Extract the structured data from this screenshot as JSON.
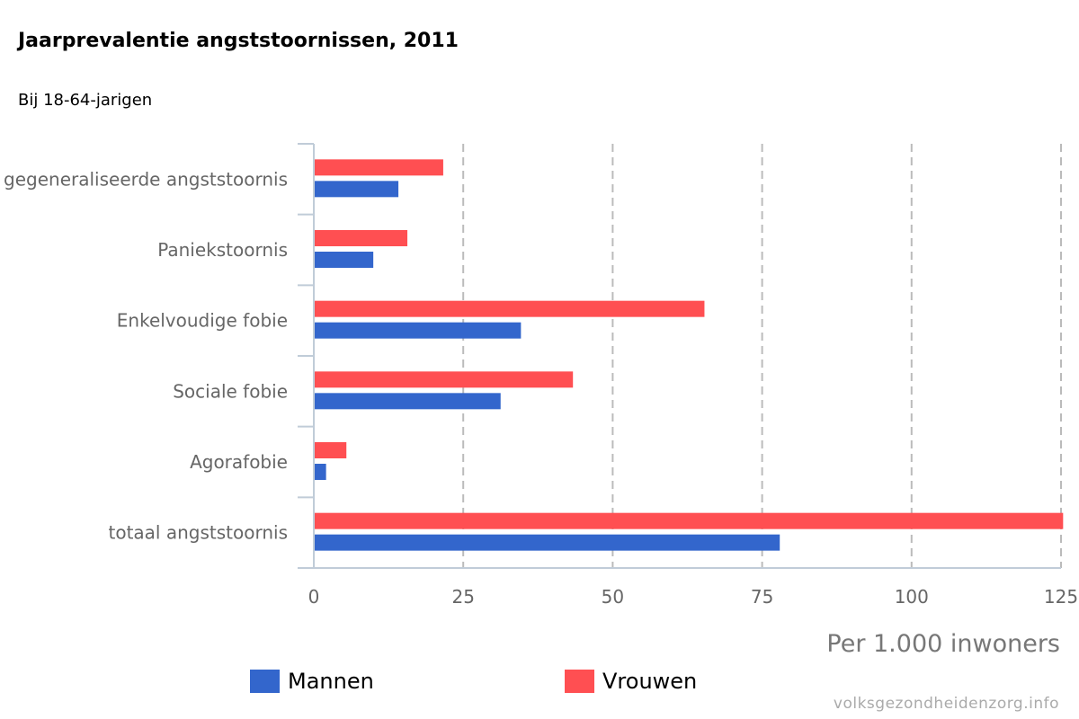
{
  "title": "Jaarprevalentie angststoornissen, 2011",
  "subtitle": "Bij 18-64-jarigen",
  "source": "volksgezondheidenzorg.info",
  "colors": {
    "mannen": "#3366cc",
    "vrouwen": "#ff4f52",
    "axis": "#c0ccd8",
    "grid": "#bbbbbb",
    "category_label": "#666666"
  },
  "legend": [
    {
      "name": "Mannen",
      "color": "#3366cc"
    },
    {
      "name": "Vrouwen",
      "color": "#ff4f52"
    }
  ],
  "chart_data": {
    "type": "bar",
    "orientation": "horizontal",
    "title": "Jaarprevalentie angststoornissen, 2011",
    "subtitle": "Bij 18-64-jarigen",
    "xlabel": "Per 1.000 inwoners",
    "ylabel": "",
    "xlim": [
      0,
      125
    ],
    "ticks": [
      "0",
      "25",
      "50",
      "75",
      "100",
      "125"
    ],
    "tick_values": [
      0,
      25,
      50,
      75,
      100,
      125
    ],
    "grid": true,
    "grid_style": "dashed vertical",
    "legend_position": "bottom",
    "categories": [
      "gegeneraliseerde angststoornis",
      "Paniekstoornis",
      "Enkelvoudige fobie",
      "Sociale fobie",
      "Agorafobie",
      "totaal angststoornis"
    ],
    "series": [
      {
        "name": "Vrouwen",
        "color": "#ff4f52",
        "values": [
          21.5,
          15.5,
          65.2,
          43.2,
          5.3,
          125.2
        ]
      },
      {
        "name": "Mannen",
        "color": "#3366cc",
        "values": [
          14.0,
          9.8,
          34.5,
          31.1,
          1.9,
          77.8
        ]
      }
    ]
  }
}
